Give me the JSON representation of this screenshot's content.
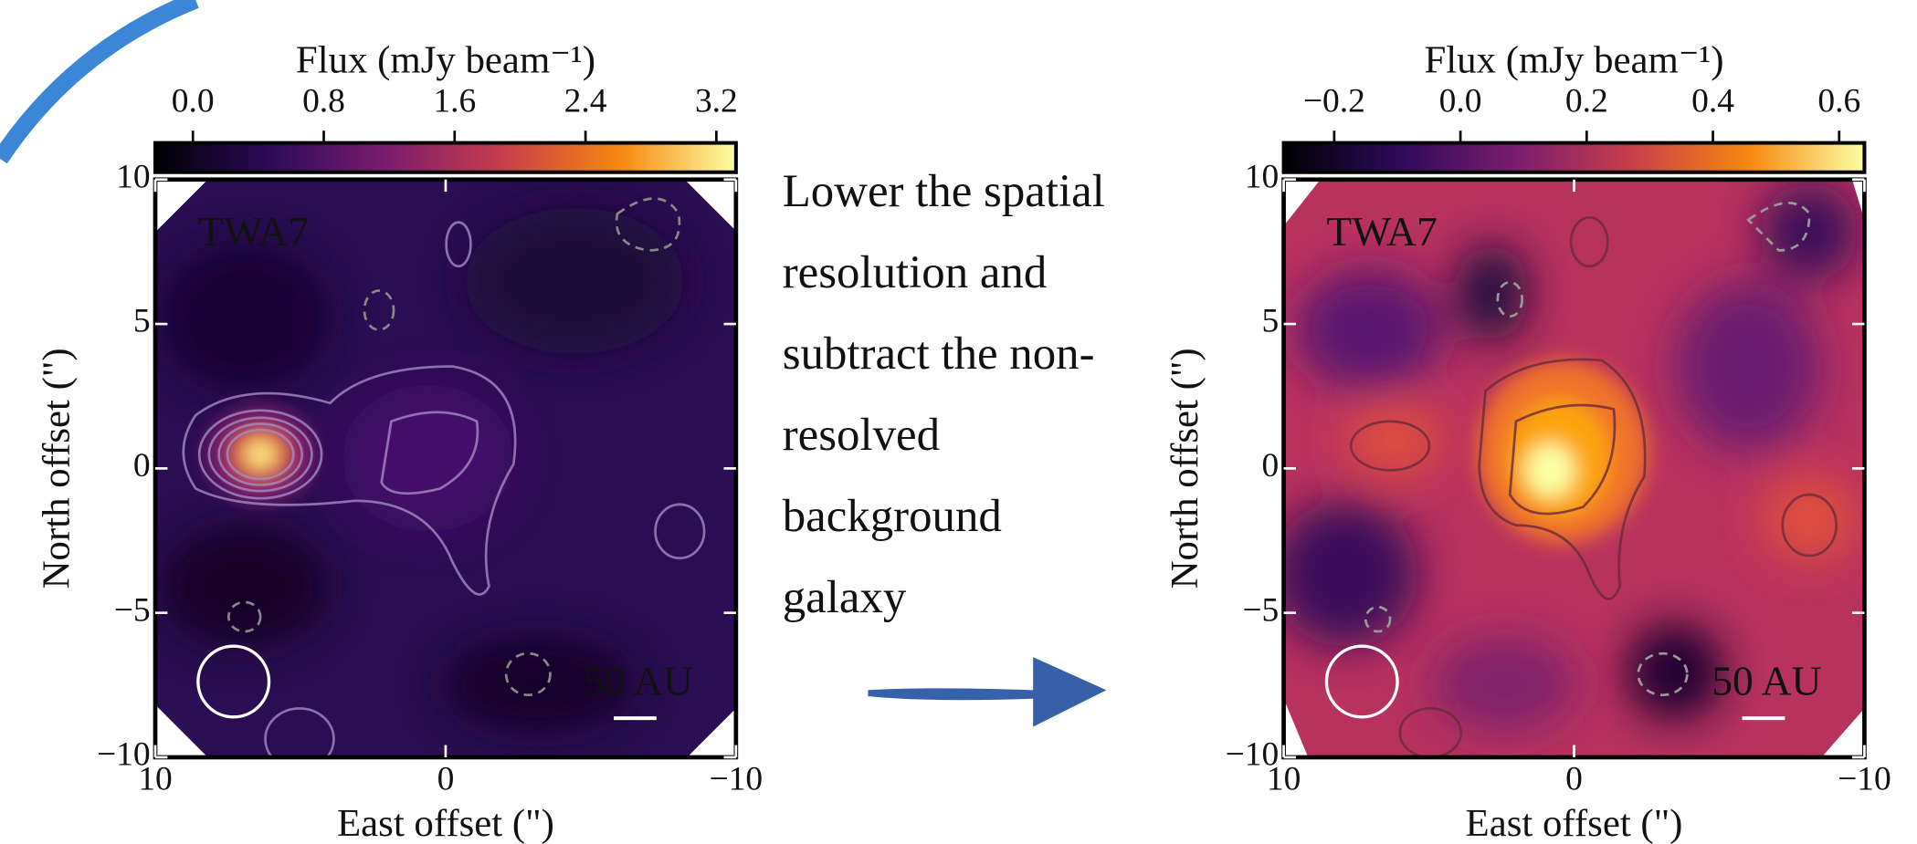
{
  "annotation": {
    "lines": [
      "Lower the spatial",
      "resolution and",
      "subtract the non-",
      "resolved",
      "background",
      "galaxy"
    ]
  },
  "chart_data": [
    {
      "type": "heatmap",
      "colorbar_label": "Flux (mJy beam⁻¹)",
      "clim": [
        -0.23,
        3.32
      ],
      "cticks": [
        {
          "value": 0,
          "label": "0.0"
        },
        0.8,
        1.6,
        2.4,
        3.2
      ],
      "xlabel": "East offset (\")",
      "ylabel": "North offset (\")",
      "xlim": [
        10,
        -10
      ],
      "xticks": [
        10,
        0,
        {
          "value": -10,
          "label": "−10"
        }
      ],
      "ylim": [
        -10,
        10
      ],
      "yticks": [
        {
          "value": -10,
          "label": "−10"
        },
        {
          "value": -5,
          "label": "−5"
        },
        0,
        5,
        10
      ],
      "annotations": [
        "TWA7",
        "50 AU"
      ]
    },
    {
      "type": "heatmap",
      "colorbar_label": "Flux (mJy beam⁻¹)",
      "clim": [
        -0.28,
        0.64
      ],
      "cticks": [
        {
          "value": -0.2,
          "label": "−0.2"
        },
        {
          "value": 0,
          "label": "0.0"
        },
        0.2,
        0.4,
        0.6
      ],
      "xlabel": "East offset (\")",
      "ylabel": "North offset (\")",
      "xlim": [
        10,
        -10
      ],
      "xticks": [
        10,
        0,
        {
          "value": -10,
          "label": "−10"
        }
      ],
      "ylim": [
        -10,
        10
      ],
      "yticks": [
        {
          "value": -10,
          "label": "−10"
        },
        {
          "value": -5,
          "label": "−5"
        },
        0,
        5,
        10
      ],
      "annotations": [
        "TWA7",
        "50 AU"
      ]
    }
  ]
}
